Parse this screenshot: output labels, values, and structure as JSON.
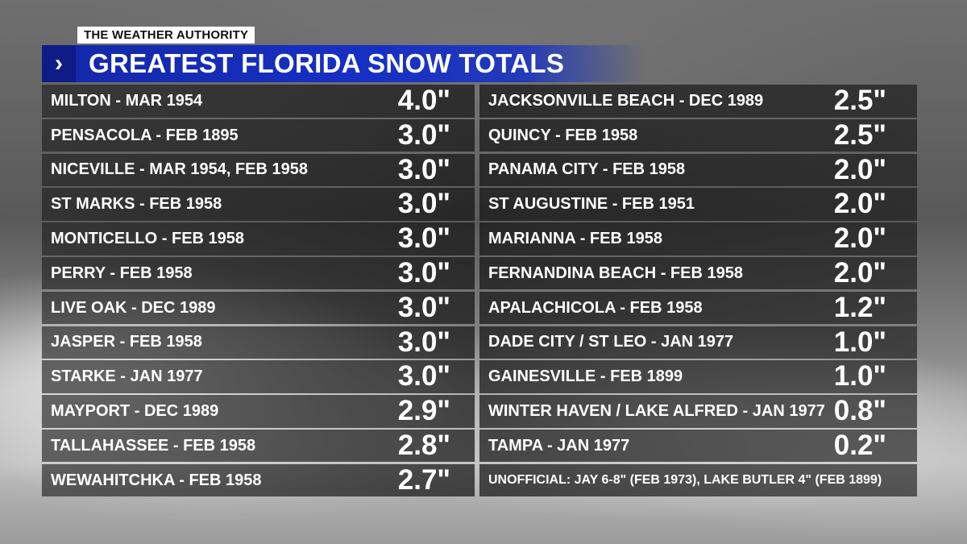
{
  "brand": "THE WEATHER AUTHORITY",
  "header": {
    "chevron_icon": "chevron-right-icon",
    "title": "GREATEST FLORIDA SNOW TOTALS"
  },
  "colors": {
    "title_bar": "#1630c4",
    "chevron_box": "#0f1c86",
    "row_bg": "#1a1a1a",
    "text": "#ffffff"
  },
  "left_column": [
    {
      "location": "MILTON - MAR 1954",
      "total": "4.0\""
    },
    {
      "location": "PENSACOLA  - FEB 1895",
      "total": "3.0\""
    },
    {
      "location": "NICEVILLE - MAR 1954, FEB 1958",
      "total": "3.0\""
    },
    {
      "location": "ST MARKS - FEB 1958",
      "total": "3.0\""
    },
    {
      "location": "MONTICELLO - FEB 1958",
      "total": "3.0\""
    },
    {
      "location": "PERRY - FEB 1958",
      "total": "3.0\""
    },
    {
      "location": "LIVE OAK - DEC 1989",
      "total": "3.0\""
    },
    {
      "location": "JASPER - FEB 1958",
      "total": "3.0\""
    },
    {
      "location": "STARKE - JAN 1977",
      "total": "3.0\""
    },
    {
      "location": "MAYPORT - DEC 1989",
      "total": "2.9\""
    },
    {
      "location": "TALLAHASSEE - FEB 1958",
      "total": "2.8\""
    },
    {
      "location": "WEWAHITCHKA - FEB 1958",
      "total": "2.7\""
    }
  ],
  "right_column": [
    {
      "location": "JACKSONVILLE BEACH - DEC 1989",
      "total": "2.5\""
    },
    {
      "location": "QUINCY - FEB 1958",
      "total": "2.5\""
    },
    {
      "location": "PANAMA CITY - FEB 1958",
      "total": "2.0\""
    },
    {
      "location": "ST AUGUSTINE - FEB 1951",
      "total": "2.0\""
    },
    {
      "location": "MARIANNA - FEB 1958",
      "total": "2.0\""
    },
    {
      "location": "FERNANDINA BEACH - FEB 1958",
      "total": "2.0\""
    },
    {
      "location": "APALACHICOLA - FEB 1958",
      "total": "1.2\""
    },
    {
      "location": "DADE CITY / ST LEO - JAN 1977",
      "total": "1.0\""
    },
    {
      "location": "GAINESVILLE - FEB 1899",
      "total": "1.0\""
    },
    {
      "location": "WINTER HAVEN / LAKE ALFRED - JAN 1977",
      "total": "0.8\""
    },
    {
      "location": "TAMPA - JAN 1977",
      "total": "0.2\""
    }
  ],
  "unofficial_note": "UNOFFICIAL: JAY 6-8\" (FEB 1973), LAKE BUTLER 4\" (FEB 1899)"
}
